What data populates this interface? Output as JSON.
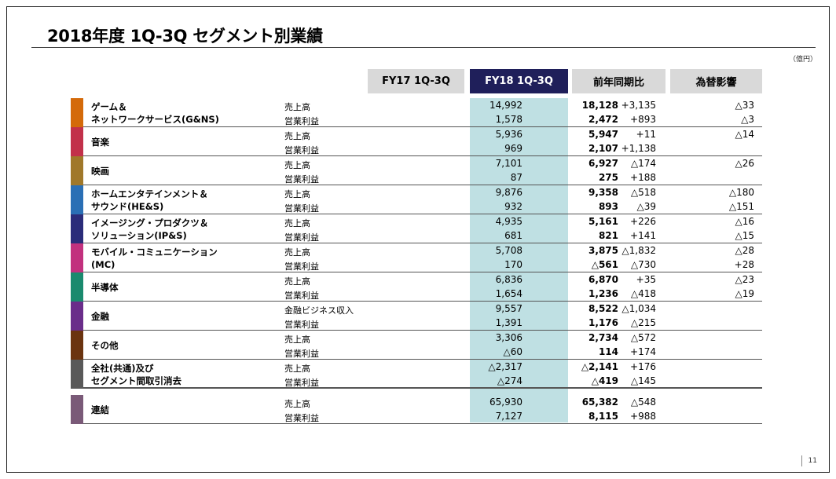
{
  "title": "2018年度 1Q-3Q セグメント別業績",
  "unit": "（億円）",
  "page_number": "11",
  "columns": {
    "fy17": "FY17 1Q-3Q",
    "fy18": "FY18 1Q-3Q",
    "yoy": "前年同期比",
    "fx": "為替影響"
  },
  "segments": [
    {
      "name_lines": [
        "ゲーム＆",
        "ネットワークサービス(G&NS)"
      ],
      "color": "#d46a0a",
      "rows": [
        {
          "label": "売上高",
          "fy17": "14,992",
          "fy18": "18,128",
          "yoy": "+3,135",
          "fx": "△33"
        },
        {
          "label": "営業利益",
          "fy17": "1,578",
          "fy18": "2,472",
          "yoy": "+893",
          "fx": "△3"
        }
      ]
    },
    {
      "name_lines": [
        "音楽"
      ],
      "color": "#c2314a",
      "rows": [
        {
          "label": "売上高",
          "fy17": "5,936",
          "fy18": "5,947",
          "yoy": "+11",
          "fx": "△14"
        },
        {
          "label": "営業利益",
          "fy17": "969",
          "fy18": "2,107",
          "yoy": "+1,138",
          "fx": ""
        }
      ]
    },
    {
      "name_lines": [
        "映画"
      ],
      "color": "#a0782a",
      "rows": [
        {
          "label": "売上高",
          "fy17": "7,101",
          "fy18": "6,927",
          "yoy": "△174",
          "fx": "△26"
        },
        {
          "label": "営業利益",
          "fy17": "87",
          "fy18": "275",
          "yoy": "+188",
          "fx": ""
        }
      ]
    },
    {
      "name_lines": [
        "ホームエンタテインメント＆",
        "サウンド(HE&S)"
      ],
      "color": "#2a6fb5",
      "rows": [
        {
          "label": "売上高",
          "fy17": "9,876",
          "fy18": "9,358",
          "yoy": "△518",
          "fx": "△180"
        },
        {
          "label": "営業利益",
          "fy17": "932",
          "fy18": "893",
          "yoy": "△39",
          "fx": "△151"
        }
      ]
    },
    {
      "name_lines": [
        "イメージング・プロダクツ＆",
        "ソリューション(IP&S)"
      ],
      "color": "#2b2c7a",
      "rows": [
        {
          "label": "売上高",
          "fy17": "4,935",
          "fy18": "5,161",
          "yoy": "+226",
          "fx": "△16"
        },
        {
          "label": "営業利益",
          "fy17": "681",
          "fy18": "821",
          "yoy": "+141",
          "fx": "△15"
        }
      ]
    },
    {
      "name_lines": [
        "モバイル・コミュニケーション",
        "(MC)"
      ],
      "color": "#c2317e",
      "rows": [
        {
          "label": "売上高",
          "fy17": "5,708",
          "fy18": "3,875",
          "yoy": "△1,832",
          "fx": "△28"
        },
        {
          "label": "営業利益",
          "fy17": "170",
          "fy18": "△561",
          "yoy": "△730",
          "fx": "+28"
        }
      ]
    },
    {
      "name_lines": [
        "半導体"
      ],
      "color": "#1a8a6e",
      "rows": [
        {
          "label": "売上高",
          "fy17": "6,836",
          "fy18": "6,870",
          "yoy": "+35",
          "fx": "△23"
        },
        {
          "label": "営業利益",
          "fy17": "1,654",
          "fy18": "1,236",
          "yoy": "△418",
          "fx": "△19"
        }
      ]
    },
    {
      "name_lines": [
        "金融"
      ],
      "color": "#6a2d8a",
      "rows": [
        {
          "label": "金融ビジネス収入",
          "fy17": "9,557",
          "fy18": "8,522",
          "yoy": "△1,034",
          "fx": ""
        },
        {
          "label": "営業利益",
          "fy17": "1,391",
          "fy18": "1,176",
          "yoy": "△215",
          "fx": ""
        }
      ]
    },
    {
      "name_lines": [
        "その他"
      ],
      "color": "#6b3410",
      "rows": [
        {
          "label": "売上高",
          "fy17": "3,306",
          "fy18": "2,734",
          "yoy": "△572",
          "fx": ""
        },
        {
          "label": "営業利益",
          "fy17": "△60",
          "fy18": "114",
          "yoy": "+174",
          "fx": ""
        }
      ]
    },
    {
      "name_lines": [
        "全社(共通)及び",
        "セグメント間取引消去"
      ],
      "color": "#595959",
      "rows": [
        {
          "label": "売上高",
          "fy17": "△2,317",
          "fy18": "△2,141",
          "yoy": "+176",
          "fx": ""
        },
        {
          "label": "営業利益",
          "fy17": "△274",
          "fy18": "△419",
          "yoy": "△145",
          "fx": ""
        }
      ]
    },
    {
      "name_lines": [
        "連結"
      ],
      "color": "#7a5a78",
      "rows": [
        {
          "label": "売上高",
          "fy17": "65,930",
          "fy18": "65,382",
          "yoy": "△548",
          "fx": ""
        },
        {
          "label": "営業利益",
          "fy17": "7,127",
          "fy18": "8,115",
          "yoy": "+988",
          "fx": ""
        }
      ]
    }
  ]
}
